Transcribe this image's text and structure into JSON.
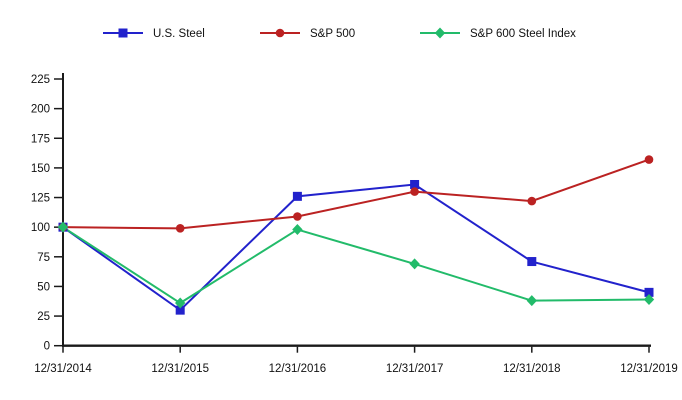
{
  "chart_data": {
    "type": "line",
    "title": "",
    "xlabel": "",
    "ylabel": "",
    "categories": [
      "12/31/2014",
      "12/31/2015",
      "12/31/2016",
      "12/31/2017",
      "12/31/2018",
      "12/31/2019"
    ],
    "series": [
      {
        "name": "U.S. Steel",
        "color": "#2222cc",
        "marker": "square",
        "values": [
          100,
          30,
          126,
          136,
          71,
          45
        ]
      },
      {
        "name": "S&P 500",
        "color": "#bb2222",
        "marker": "circle",
        "values": [
          100,
          99,
          109,
          130,
          122,
          157
        ]
      },
      {
        "name": "S&P 600 Steel Index",
        "color": "#22bb6a",
        "marker": "diamond",
        "values": [
          100,
          36,
          98,
          69,
          38,
          39
        ]
      }
    ],
    "ylim": [
      0,
      225
    ],
    "yticks": [
      0,
      25,
      50,
      75,
      100,
      125,
      150,
      175,
      200,
      225
    ],
    "grid": false,
    "legend_position": "top",
    "axis_color": "#1a1a1a",
    "text_color": "#111111",
    "background": "#ffffff"
  }
}
